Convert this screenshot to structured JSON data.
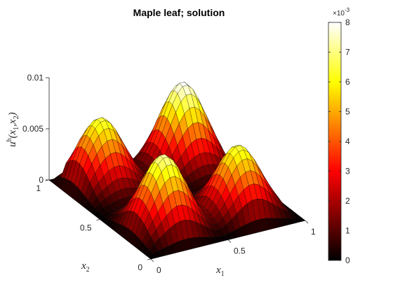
{
  "chart_data": {
    "type": "surface",
    "title": "Maple leaf; solution",
    "xlabel": "x1",
    "ylabel": "x2",
    "zlabel": "u^h(x1,x2)",
    "xlim": [
      0,
      1
    ],
    "ylim": [
      0,
      1
    ],
    "zlim": [
      0,
      0.01
    ],
    "x_ticks": [
      "0",
      "0.5",
      "1"
    ],
    "y_ticks": [
      "0",
      "0.5",
      "1"
    ],
    "z_ticks": [
      "0",
      "0.005",
      "0.01"
    ],
    "colormap": "hot",
    "colorbar": {
      "range": [
        0,
        8
      ],
      "ticks": [
        "0",
        "1",
        "2",
        "3",
        "4",
        "5",
        "6",
        "7",
        "8"
      ],
      "multiplier": "×10",
      "exponent": "-3"
    },
    "peaks": [
      {
        "x1": 0.22,
        "x2": 0.82,
        "u": 0.0066
      },
      {
        "x1": 0.75,
        "x2": 0.82,
        "u": 0.0081
      },
      {
        "x1": 0.72,
        "x2": 0.23,
        "u": 0.0066
      },
      {
        "x1": 0.25,
        "x2": 0.25,
        "u": 0.0073
      }
    ]
  }
}
